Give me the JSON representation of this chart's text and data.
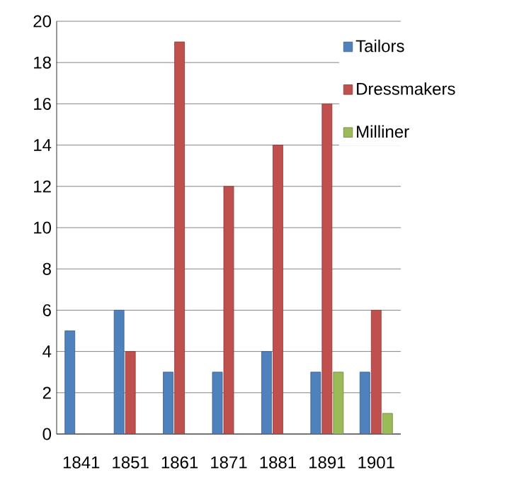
{
  "chart_data": {
    "type": "bar",
    "categories": [
      "1841",
      "1851",
      "1861",
      "1871",
      "1881",
      "1891",
      "1901"
    ],
    "series": [
      {
        "name": "Tailors",
        "color": "#4f81bd",
        "values": [
          5,
          6,
          3,
          3,
          4,
          3,
          3
        ]
      },
      {
        "name": "Dressmakers",
        "color": "#c0504d",
        "values": [
          null,
          4,
          19,
          12,
          14,
          16,
          6
        ]
      },
      {
        "name": "Milliner",
        "color": "#9bbb59",
        "values": [
          null,
          null,
          null,
          null,
          null,
          3,
          1
        ]
      }
    ],
    "ylim": [
      0,
      20
    ],
    "yticks": [
      0,
      2,
      4,
      6,
      8,
      10,
      12,
      14,
      16,
      18,
      20
    ],
    "grid": "y",
    "legend": "top right"
  }
}
